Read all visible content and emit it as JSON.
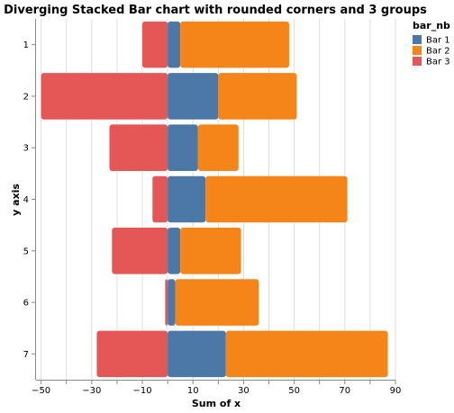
{
  "chart_data": {
    "type": "bar",
    "orientation": "horizontal",
    "stacking": "diverging",
    "title": "Diverging Stacked Bar chart with rounded corners and 3 groups",
    "xlabel": "Sum of x",
    "ylabel": "y axis",
    "categories": [
      "1",
      "2",
      "3",
      "4",
      "5",
      "6",
      "7"
    ],
    "xlim": [
      -52,
      90
    ],
    "xticks": [
      -50,
      -30,
      -10,
      10,
      30,
      50,
      70,
      90
    ],
    "grid": true,
    "legend": {
      "title": "bar_nb",
      "position": "top-right"
    },
    "series": [
      {
        "name": "Bar 1",
        "color": "#4c78a8",
        "values": [
          5,
          20,
          12,
          15,
          5,
          3,
          23
        ]
      },
      {
        "name": "Bar 2",
        "color": "#f58518",
        "values": [
          43,
          31,
          16,
          56,
          24,
          33,
          64
        ]
      },
      {
        "name": "Bar 3",
        "color": "#e45756",
        "values": [
          -10,
          -50,
          -23,
          -6,
          -22,
          -1,
          -28
        ]
      }
    ]
  }
}
